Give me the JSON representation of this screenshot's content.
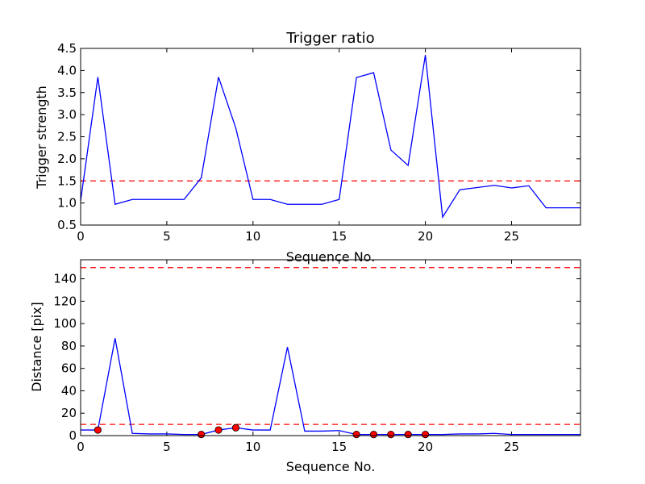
{
  "chart_data": [
    {
      "type": "line",
      "title": "Trigger ratio",
      "xlabel": "Sequence No.",
      "ylabel": "Trigger strength",
      "xlim": [
        0,
        29
      ],
      "ylim": [
        0.5,
        4.5
      ],
      "xticks": [
        0,
        5,
        10,
        15,
        20,
        25
      ],
      "yticks": [
        0.5,
        1.0,
        1.5,
        2.0,
        2.5,
        3.0,
        3.5,
        4.0,
        4.5
      ],
      "grid": false,
      "series": [
        {
          "color": "#0000ff",
          "x": [
            0,
            1,
            2,
            3,
            4,
            5,
            6,
            7,
            8,
            9,
            10,
            11,
            12,
            13,
            14,
            15,
            16,
            17,
            18,
            19,
            20,
            21,
            22,
            23,
            24,
            25,
            26,
            27,
            28,
            29
          ],
          "values": [
            1.05,
            3.85,
            0.97,
            1.08,
            1.08,
            1.08,
            1.08,
            1.57,
            3.85,
            2.7,
            1.08,
            1.08,
            0.97,
            0.97,
            0.97,
            1.08,
            3.84,
            3.95,
            2.2,
            1.85,
            4.35,
            0.68,
            1.3,
            1.35,
            1.4,
            1.34,
            1.39,
            0.89,
            0.89,
            0.89
          ]
        }
      ],
      "threshold_lines": [
        {
          "y": 1.5,
          "color": "#ff0000",
          "style": "dashed"
        }
      ]
    },
    {
      "type": "line",
      "title": "",
      "xlabel": "Sequence No.",
      "ylabel": "Distance [pix]",
      "xlim": [
        0,
        29
      ],
      "ylim": [
        0,
        157
      ],
      "xticks": [
        0,
        5,
        10,
        15,
        20,
        25
      ],
      "yticks": [
        0,
        20,
        40,
        60,
        80,
        100,
        120,
        140
      ],
      "grid": false,
      "series": [
        {
          "color": "#0000ff",
          "x": [
            0,
            1,
            2,
            3,
            4,
            5,
            6,
            7,
            8,
            9,
            10,
            11,
            12,
            13,
            14,
            15,
            16,
            17,
            18,
            19,
            20,
            21,
            22,
            23,
            24,
            25,
            26,
            27,
            28,
            29
          ],
          "values": [
            5,
            5,
            87,
            2,
            1.5,
            1.5,
            1,
            1,
            5,
            7,
            5,
            5,
            79,
            4,
            4,
            4.5,
            1,
            1,
            1,
            1,
            1,
            1,
            1.5,
            1.5,
            2,
            1,
            1,
            1,
            1,
            1
          ]
        }
      ],
      "markers": {
        "color": "#ff0000",
        "x": [
          1,
          7,
          8,
          9,
          16,
          17,
          18,
          19,
          20
        ],
        "y": [
          5,
          1,
          5,
          7,
          1,
          1,
          1,
          1,
          1
        ]
      },
      "threshold_lines": [
        {
          "y": 150,
          "color": "#ff0000",
          "style": "dashed"
        },
        {
          "y": 10,
          "color": "#ff0000",
          "style": "dashed"
        }
      ]
    }
  ]
}
